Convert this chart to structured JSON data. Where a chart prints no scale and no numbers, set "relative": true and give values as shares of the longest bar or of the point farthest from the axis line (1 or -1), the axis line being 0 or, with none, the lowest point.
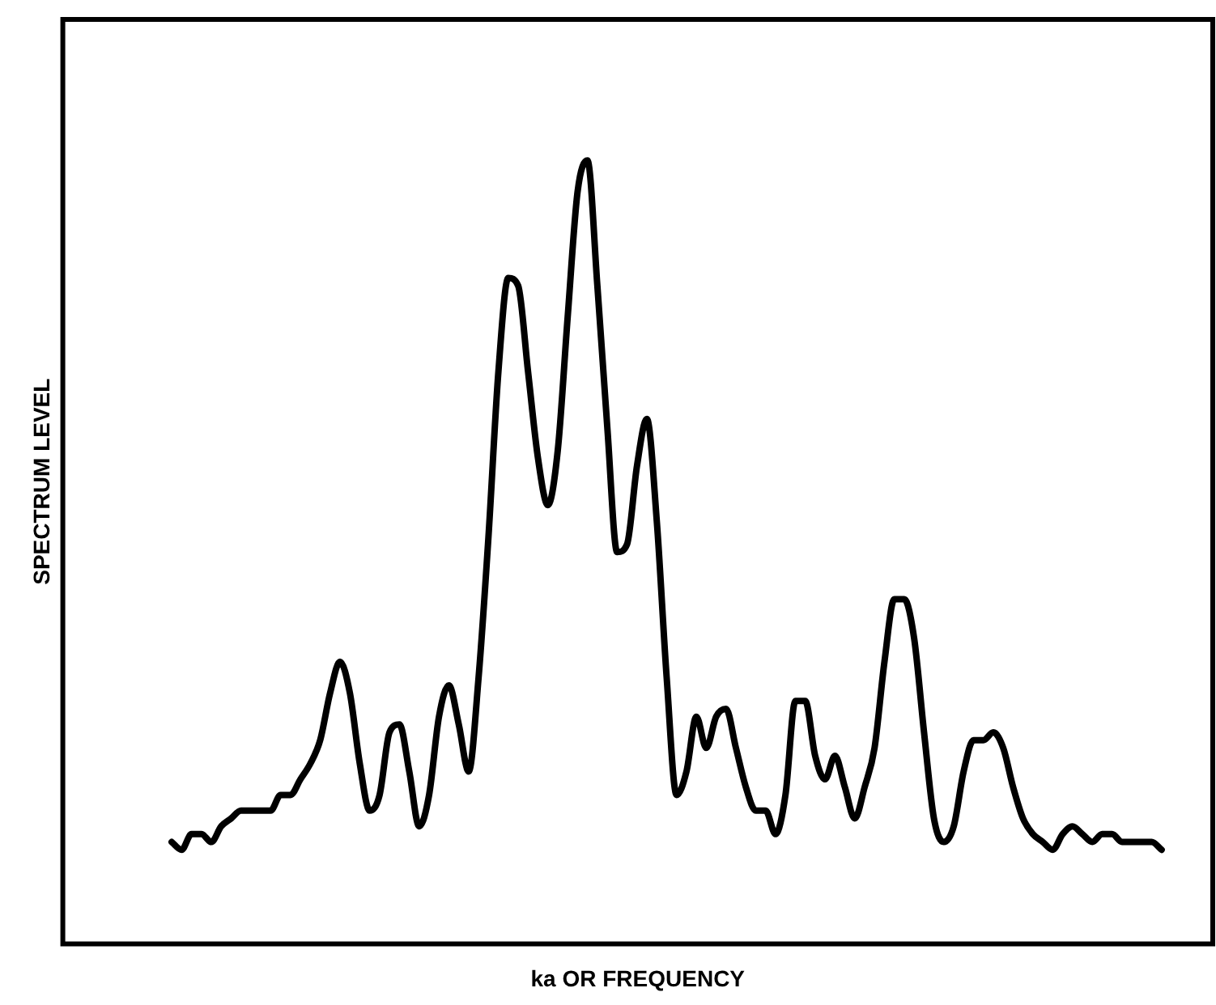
{
  "chart_data": {
    "type": "line",
    "xlabel": "ka OR FREQUENCY",
    "ylabel": "SPECTRUM LEVEL",
    "relative": true,
    "marker": "none",
    "line_style": "solid",
    "color": "#000000",
    "categories": [
      null,
      null,
      null,
      null,
      null,
      null,
      null,
      null,
      null,
      null,
      null,
      null,
      null,
      null,
      null,
      null,
      null,
      null,
      null,
      null,
      null,
      null,
      null,
      null,
      null,
      null,
      null,
      null,
      null,
      null,
      null,
      null,
      null,
      null,
      null,
      null,
      null,
      null,
      null,
      null,
      null,
      null,
      null,
      null,
      null,
      null,
      null,
      null,
      null,
      null,
      null,
      null,
      null,
      null,
      null,
      null,
      null,
      null,
      null,
      null,
      null,
      null,
      null,
      null,
      null,
      null,
      null,
      null,
      null,
      null,
      null,
      null,
      null,
      null,
      null,
      null,
      null,
      null,
      null,
      null,
      null,
      null,
      null,
      null,
      null,
      null,
      null,
      null,
      null,
      null,
      null,
      null,
      null,
      null,
      null,
      null,
      null,
      null,
      null,
      null,
      null
    ],
    "values": [
      0.13,
      0.12,
      0.14,
      0.14,
      0.13,
      0.15,
      0.16,
      0.17,
      0.17,
      0.17,
      0.17,
      0.19,
      0.19,
      0.21,
      0.23,
      0.26,
      0.32,
      0.36,
      0.32,
      0.23,
      0.17,
      0.19,
      0.27,
      0.28,
      0.22,
      0.15,
      0.19,
      0.29,
      0.33,
      0.28,
      0.22,
      0.34,
      0.52,
      0.73,
      0.85,
      0.84,
      0.73,
      0.62,
      0.56,
      0.63,
      0.8,
      0.96,
      1,
      0.84,
      0.66,
      0.5,
      0.51,
      0.61,
      0.67,
      0.54,
      0.34,
      0.19,
      0.22,
      0.29,
      0.25,
      0.29,
      0.3,
      0.25,
      0.2,
      0.17,
      0.17,
      0.14,
      0.19,
      0.31,
      0.31,
      0.24,
      0.21,
      0.24,
      0.2,
      0.16,
      0.2,
      0.25,
      0.36,
      0.44,
      0.44,
      0.39,
      0.27,
      0.16,
      0.13,
      0.15,
      0.22,
      0.26,
      0.26,
      0.27,
      0.25,
      0.2,
      0.16,
      0.14,
      0.13,
      0.12,
      0.14,
      0.15,
      0.14,
      0.13,
      0.14,
      0.14,
      0.13,
      0.13,
      0.13,
      0.13,
      0.12
    ]
  }
}
